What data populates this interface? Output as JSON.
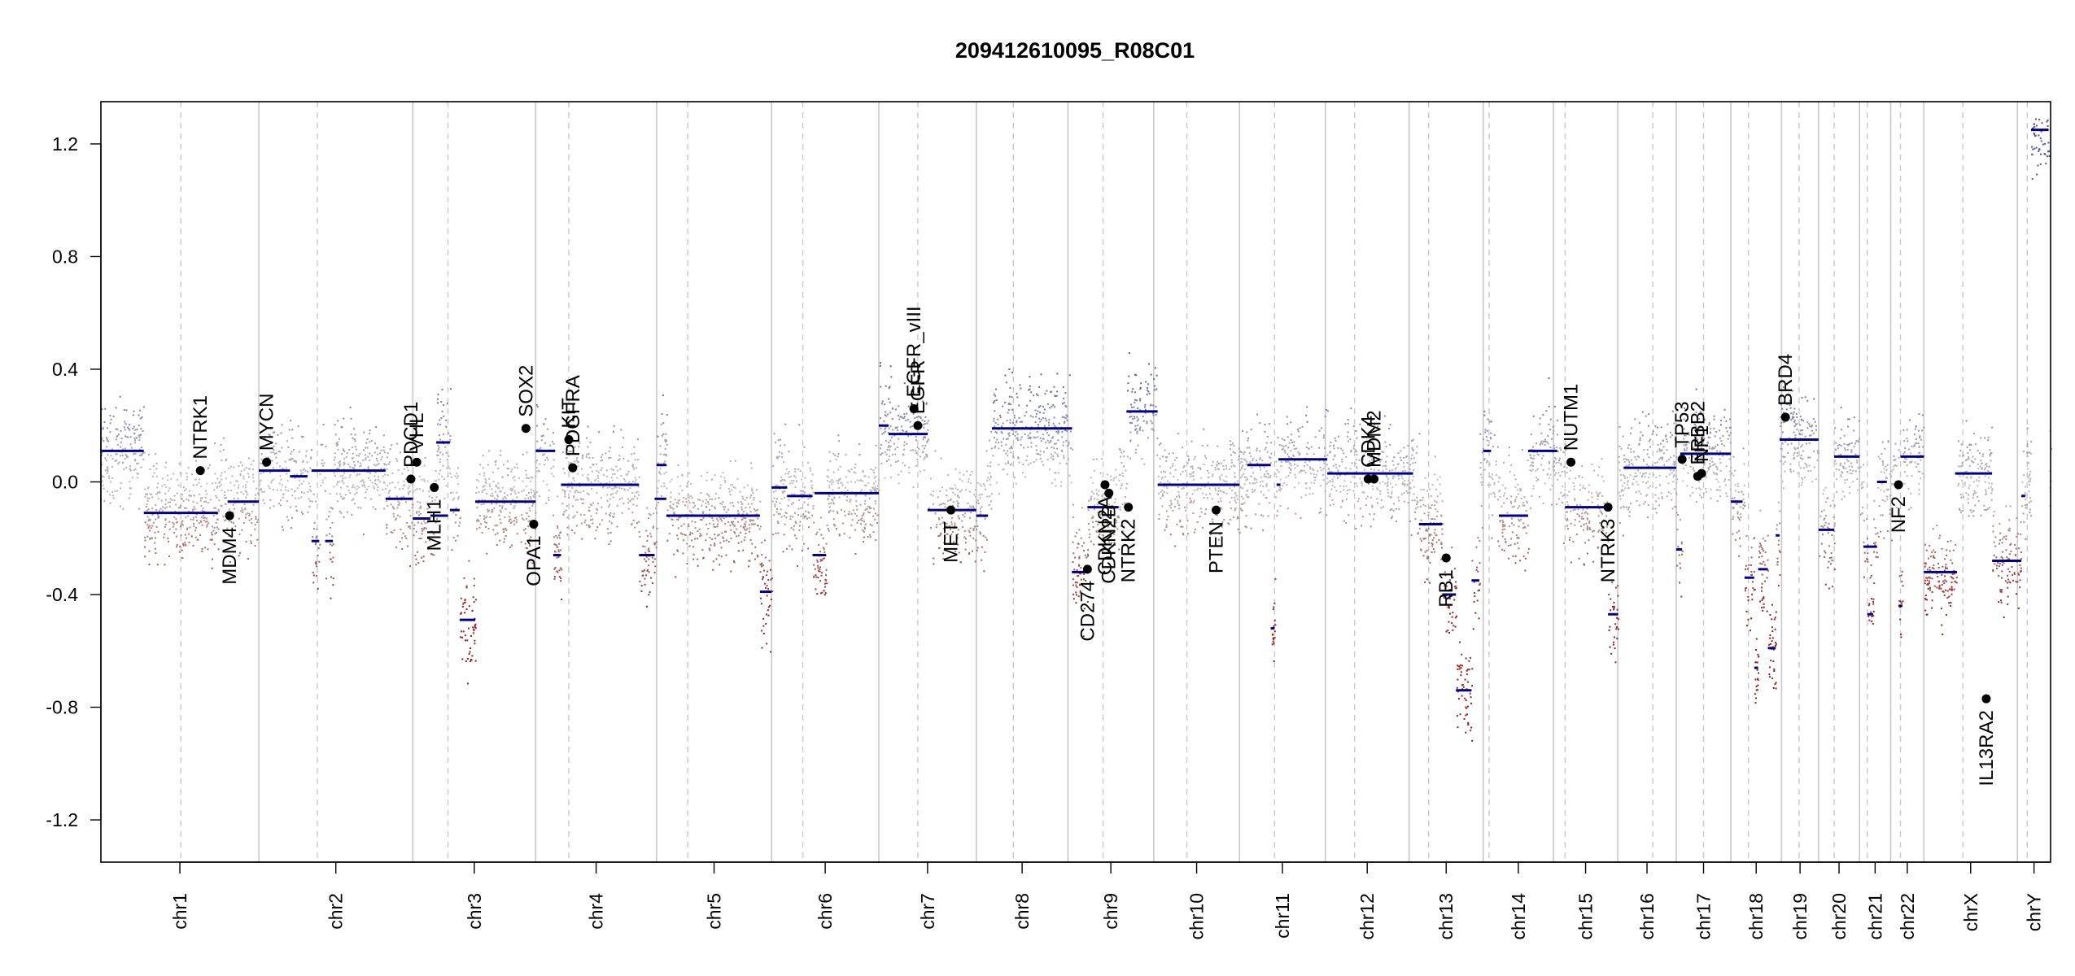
{
  "chart_data": {
    "type": "scatter",
    "title": "209412610095_R08C01",
    "xlabel": "",
    "ylabel": "",
    "ylim": [
      -1.35,
      1.35
    ],
    "y_ticks": [
      -1.2,
      -0.8,
      -0.4,
      0.0,
      0.4,
      0.8,
      1.2
    ],
    "grid": "vertical chromosome boundaries (solid) and centromeres (dashed)",
    "colors": {
      "gain": "#5A5AA8",
      "neutral": "#BDBDBD",
      "loss": "#9B2B20",
      "segment": "#00008B",
      "boundary": "#C8C8C8",
      "point": "#000000"
    },
    "chromosomes": [
      {
        "name": "chr1",
        "end": 0.081,
        "cen": 0.041
      },
      {
        "name": "chr2",
        "end": 0.16,
        "cen": 0.111
      },
      {
        "name": "chr3",
        "end": 0.223,
        "cen": 0.178
      },
      {
        "name": "chr4",
        "end": 0.285,
        "cen": 0.24
      },
      {
        "name": "chr5",
        "end": 0.344,
        "cen": 0.301
      },
      {
        "name": "chr6",
        "end": 0.399,
        "cen": 0.36
      },
      {
        "name": "chr7",
        "end": 0.449,
        "cen": 0.419
      },
      {
        "name": "chr8",
        "end": 0.496,
        "cen": 0.468
      },
      {
        "name": "chr9",
        "end": 0.54,
        "cen": 0.514
      },
      {
        "name": "chr10",
        "end": 0.584,
        "cen": 0.557
      },
      {
        "name": "chr11",
        "end": 0.628,
        "cen": 0.602
      },
      {
        "name": "chr12",
        "end": 0.671,
        "cen": 0.643
      },
      {
        "name": "chr13",
        "end": 0.709,
        "cen": 0.681
      },
      {
        "name": "chr14",
        "end": 0.745,
        "cen": 0.712
      },
      {
        "name": "chr15",
        "end": 0.778,
        "cen": 0.751
      },
      {
        "name": "chr16",
        "end": 0.808,
        "cen": 0.796
      },
      {
        "name": "chr17",
        "end": 0.836,
        "cen": 0.822
      },
      {
        "name": "chr18",
        "end": 0.862,
        "cen": 0.845
      },
      {
        "name": "chr19",
        "end": 0.881,
        "cen": 0.871
      },
      {
        "name": "chr20",
        "end": 0.902,
        "cen": 0.889
      },
      {
        "name": "chr21",
        "end": 0.918,
        "cen": 0.906
      },
      {
        "name": "chr22",
        "end": 0.935,
        "cen": 0.923
      },
      {
        "name": "chrX",
        "end": 0.983,
        "cen": 0.955
      },
      {
        "name": "chrY",
        "end": 1.0,
        "cen": 0.988
      }
    ],
    "segments": [
      {
        "x0": 0.0,
        "x1": 0.022,
        "y": 0.11
      },
      {
        "x0": 0.022,
        "x1": 0.06,
        "y": -0.11
      },
      {
        "x0": 0.065,
        "x1": 0.081,
        "y": -0.07
      },
      {
        "x0": 0.081,
        "x1": 0.097,
        "y": 0.04
      },
      {
        "x0": 0.097,
        "x1": 0.106,
        "y": 0.02
      },
      {
        "x0": 0.108,
        "x1": 0.112,
        "y": -0.21
      },
      {
        "x0": 0.115,
        "x1": 0.119,
        "y": -0.21
      },
      {
        "x0": 0.108,
        "x1": 0.146,
        "y": 0.04
      },
      {
        "x0": 0.146,
        "x1": 0.16,
        "y": -0.06
      },
      {
        "x0": 0.16,
        "x1": 0.169,
        "y": -0.13
      },
      {
        "x0": 0.169,
        "x1": 0.178,
        "y": -0.12
      },
      {
        "x0": 0.172,
        "x1": 0.179,
        "y": 0.14
      },
      {
        "x0": 0.179,
        "x1": 0.184,
        "y": -0.1
      },
      {
        "x0": 0.184,
        "x1": 0.192,
        "y": -0.49
      },
      {
        "x0": 0.192,
        "x1": 0.223,
        "y": -0.07
      },
      {
        "x0": 0.223,
        "x1": 0.233,
        "y": 0.11
      },
      {
        "x0": 0.232,
        "x1": 0.236,
        "y": -0.26
      },
      {
        "x0": 0.236,
        "x1": 0.276,
        "y": -0.01
      },
      {
        "x0": 0.276,
        "x1": 0.284,
        "y": -0.26
      },
      {
        "x0": 0.284,
        "x1": 0.29,
        "y": -0.06
      },
      {
        "x0": 0.285,
        "x1": 0.29,
        "y": 0.06
      },
      {
        "x0": 0.29,
        "x1": 0.338,
        "y": -0.12
      },
      {
        "x0": 0.338,
        "x1": 0.344,
        "y": -0.39
      },
      {
        "x0": 0.344,
        "x1": 0.352,
        "y": -0.02
      },
      {
        "x0": 0.352,
        "x1": 0.365,
        "y": -0.05
      },
      {
        "x0": 0.365,
        "x1": 0.372,
        "y": -0.26
      },
      {
        "x0": 0.366,
        "x1": 0.399,
        "y": -0.04
      },
      {
        "x0": 0.399,
        "x1": 0.404,
        "y": 0.2
      },
      {
        "x0": 0.404,
        "x1": 0.424,
        "y": 0.17
      },
      {
        "x0": 0.424,
        "x1": 0.449,
        "y": -0.1
      },
      {
        "x0": 0.449,
        "x1": 0.455,
        "y": -0.12
      },
      {
        "x0": 0.457,
        "x1": 0.498,
        "y": 0.19
      },
      {
        "x0": 0.498,
        "x1": 0.506,
        "y": -0.32
      },
      {
        "x0": 0.506,
        "x1": 0.522,
        "y": -0.09
      },
      {
        "x0": 0.526,
        "x1": 0.542,
        "y": 0.25
      },
      {
        "x0": 0.542,
        "x1": 0.584,
        "y": -0.01
      },
      {
        "x0": 0.588,
        "x1": 0.6,
        "y": 0.06
      },
      {
        "x0": 0.6,
        "x1": 0.602,
        "y": -0.52
      },
      {
        "x0": 0.603,
        "x1": 0.605,
        "y": -0.01
      },
      {
        "x0": 0.604,
        "x1": 0.629,
        "y": 0.08
      },
      {
        "x0": 0.629,
        "x1": 0.673,
        "y": 0.03
      },
      {
        "x0": 0.676,
        "x1": 0.688,
        "y": -0.15
      },
      {
        "x0": 0.688,
        "x1": 0.695,
        "y": -0.4
      },
      {
        "x0": 0.695,
        "x1": 0.703,
        "y": -0.74
      },
      {
        "x0": 0.703,
        "x1": 0.707,
        "y": -0.35
      },
      {
        "x0": 0.709,
        "x1": 0.713,
        "y": 0.11
      },
      {
        "x0": 0.717,
        "x1": 0.732,
        "y": -0.12
      },
      {
        "x0": 0.732,
        "x1": 0.747,
        "y": 0.11
      },
      {
        "x0": 0.751,
        "x1": 0.773,
        "y": -0.09
      },
      {
        "x0": 0.773,
        "x1": 0.778,
        "y": -0.47
      },
      {
        "x0": 0.781,
        "x1": 0.808,
        "y": 0.05
      },
      {
        "x0": 0.808,
        "x1": 0.811,
        "y": -0.24
      },
      {
        "x0": 0.81,
        "x1": 0.836,
        "y": 0.1
      },
      {
        "x0": 0.836,
        "x1": 0.842,
        "y": -0.07
      },
      {
        "x0": 0.843,
        "x1": 0.848,
        "y": -0.34
      },
      {
        "x0": 0.848,
        "x1": 0.85,
        "y": -0.66
      },
      {
        "x0": 0.85,
        "x1": 0.855,
        "y": -0.31
      },
      {
        "x0": 0.855,
        "x1": 0.859,
        "y": -0.59
      },
      {
        "x0": 0.859,
        "x1": 0.861,
        "y": -0.19
      },
      {
        "x0": 0.861,
        "x1": 0.881,
        "y": 0.15
      },
      {
        "x0": 0.881,
        "x1": 0.889,
        "y": -0.17
      },
      {
        "x0": 0.889,
        "x1": 0.902,
        "y": 0.09
      },
      {
        "x0": 0.904,
        "x1": 0.911,
        "y": -0.23
      },
      {
        "x0": 0.906,
        "x1": 0.909,
        "y": -0.47
      },
      {
        "x0": 0.911,
        "x1": 0.916,
        "y": 0.0
      },
      {
        "x0": 0.922,
        "x1": 0.924,
        "y": -0.44
      },
      {
        "x0": 0.923,
        "x1": 0.935,
        "y": 0.09
      },
      {
        "x0": 0.935,
        "x1": 0.952,
        "y": -0.32
      },
      {
        "x0": 0.951,
        "x1": 0.97,
        "y": 0.03
      },
      {
        "x0": 0.97,
        "x1": 0.985,
        "y": -0.28
      },
      {
        "x0": 0.985,
        "x1": 0.987,
        "y": -0.05
      },
      {
        "x0": 0.99,
        "x1": 0.999,
        "y": 1.25
      }
    ],
    "genes": [
      {
        "label": "NTRK1",
        "x": 0.051,
        "y": 0.04,
        "side": "up"
      },
      {
        "label": "MDM4",
        "x": 0.066,
        "y": -0.12,
        "side": "down"
      },
      {
        "label": "MYCN",
        "x": 0.085,
        "y": 0.07,
        "side": "up"
      },
      {
        "label": "PDCD1",
        "x": 0.159,
        "y": 0.01,
        "side": "up"
      },
      {
        "label": "VHL",
        "x": 0.162,
        "y": 0.07,
        "side": "up"
      },
      {
        "label": "MLH1",
        "x": 0.171,
        "y": -0.02,
        "side": "down"
      },
      {
        "label": "SOX2",
        "x": 0.218,
        "y": 0.19,
        "side": "up"
      },
      {
        "label": "OPA1",
        "x": 0.222,
        "y": -0.15,
        "side": "down"
      },
      {
        "label": "KIT",
        "x": 0.24,
        "y": 0.15,
        "side": "up"
      },
      {
        "label": "PDGFRA",
        "x": 0.242,
        "y": 0.05,
        "side": "up"
      },
      {
        "label": "EGFR_vIII",
        "x": 0.417,
        "y": 0.26,
        "side": "up"
      },
      {
        "label": "EGFR",
        "x": 0.419,
        "y": 0.2,
        "side": "up"
      },
      {
        "label": "MET",
        "x": 0.436,
        "y": -0.1,
        "side": "down"
      },
      {
        "label": "CD274",
        "x": 0.506,
        "y": -0.31,
        "side": "down"
      },
      {
        "label": "CDKN2A",
        "x": 0.515,
        "y": -0.01,
        "side": "down"
      },
      {
        "label": "CDKN2B",
        "x": 0.517,
        "y": -0.04,
        "side": "down"
      },
      {
        "label": "NTRK2",
        "x": 0.527,
        "y": -0.09,
        "side": "down"
      },
      {
        "label": "PTEN",
        "x": 0.572,
        "y": -0.1,
        "side": "down"
      },
      {
        "label": "CDK4",
        "x": 0.65,
        "y": 0.01,
        "side": "up"
      },
      {
        "label": "MDM2",
        "x": 0.653,
        "y": 0.01,
        "side": "up"
      },
      {
        "label": "RB1",
        "x": 0.69,
        "y": -0.27,
        "side": "down"
      },
      {
        "label": "NUTM1",
        "x": 0.754,
        "y": 0.07,
        "side": "up"
      },
      {
        "label": "NTRK3",
        "x": 0.773,
        "y": -0.09,
        "side": "down"
      },
      {
        "label": "TP53",
        "x": 0.811,
        "y": 0.08,
        "side": "up"
      },
      {
        "label": "ERBB2",
        "x": 0.819,
        "y": 0.02,
        "side": "up"
      },
      {
        "label": "NF1",
        "x": 0.821,
        "y": 0.03,
        "side": "up"
      },
      {
        "label": "BRD4",
        "x": 0.864,
        "y": 0.23,
        "side": "up"
      },
      {
        "label": "NF2",
        "x": 0.922,
        "y": -0.01,
        "side": "down"
      },
      {
        "label": "IL13RA2",
        "x": 0.967,
        "y": -0.77,
        "side": "down"
      }
    ]
  }
}
